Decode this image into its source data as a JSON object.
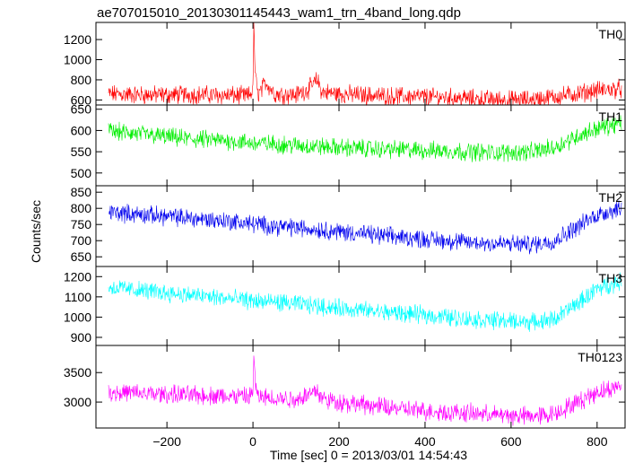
{
  "chart_data": {
    "type": "line",
    "title": "ae707015010_20130301145443_wam1_trn_4band_long.qdp",
    "xlabel": "Time [sec] 0 = 2013/03/01 14:54:43",
    "ylabel": "Counts/sec",
    "xlim": [
      -365,
      865
    ],
    "x_ticks": [
      -200,
      0,
      200,
      400,
      600,
      800
    ],
    "x_tick_labels": [
      "−200",
      "0",
      "200",
      "400",
      "600",
      "800"
    ],
    "panels": [
      {
        "name": "TH0",
        "color": "#ff0000",
        "ylim": [
          550,
          1370
        ],
        "y_ticks": [
          600,
          800,
          1000,
          1200
        ],
        "x": [
          -350,
          -300,
          -250,
          -200,
          -150,
          -100,
          -50,
          -10,
          0,
          2,
          5,
          10,
          20,
          30,
          50,
          100,
          130,
          150,
          160,
          200,
          250,
          300,
          350,
          400,
          450,
          500,
          550,
          600,
          650,
          700,
          750,
          800,
          850
        ],
        "y": [
          660,
          655,
          650,
          648,
          655,
          650,
          645,
          640,
          700,
          1330,
          900,
          660,
          700,
          780,
          660,
          650,
          710,
          800,
          680,
          660,
          650,
          640,
          635,
          630,
          625,
          615,
          605,
          600,
          605,
          630,
          660,
          695,
          710
        ]
      },
      {
        "name": "TH1",
        "color": "#00ee00",
        "ylim": [
          470,
          660
        ],
        "y_ticks": [
          500,
          550,
          600,
          650
        ],
        "x": [
          -350,
          -300,
          -250,
          -200,
          -150,
          -100,
          -50,
          0,
          50,
          100,
          150,
          200,
          250,
          300,
          350,
          400,
          450,
          500,
          550,
          600,
          650,
          700,
          750,
          800,
          850
        ],
        "y": [
          600,
          595,
          590,
          585,
          580,
          578,
          575,
          570,
          568,
          565,
          562,
          560,
          558,
          556,
          555,
          553,
          552,
          550,
          548,
          548,
          550,
          560,
          585,
          605,
          615
        ]
      },
      {
        "name": "TH2",
        "color": "#0000ee",
        "ylim": [
          620,
          870
        ],
        "y_ticks": [
          650,
          700,
          750,
          800,
          850
        ],
        "x": [
          -350,
          -300,
          -250,
          -200,
          -150,
          -100,
          -50,
          0,
          50,
          100,
          150,
          200,
          250,
          300,
          350,
          400,
          450,
          500,
          550,
          600,
          650,
          700,
          750,
          800,
          850
        ],
        "y": [
          790,
          785,
          780,
          775,
          770,
          765,
          760,
          752,
          745,
          740,
          735,
          728,
          722,
          715,
          710,
          705,
          700,
          695,
          692,
          690,
          688,
          700,
          740,
          780,
          800
        ]
      },
      {
        "name": "TH3",
        "color": "#00ffff",
        "ylim": [
          860,
          1250
        ],
        "y_ticks": [
          900,
          1000,
          1100,
          1200
        ],
        "x": [
          -350,
          -300,
          -250,
          -200,
          -150,
          -100,
          -50,
          0,
          50,
          100,
          150,
          200,
          250,
          300,
          350,
          400,
          450,
          500,
          550,
          600,
          650,
          700,
          750,
          800,
          850
        ],
        "y": [
          1150,
          1140,
          1130,
          1120,
          1110,
          1100,
          1090,
          1080,
          1075,
          1065,
          1055,
          1045,
          1035,
          1025,
          1018,
          1010,
          1000,
          990,
          985,
          980,
          975,
          990,
          1060,
          1140,
          1175
        ]
      },
      {
        "name": "TH0123",
        "color": "#ff00ff",
        "ylim": [
          2560,
          3960
        ],
        "y_ticks": [
          3000,
          3500
        ],
        "x": [
          -350,
          -300,
          -250,
          -200,
          -150,
          -100,
          -50,
          -10,
          0,
          2,
          5,
          10,
          20,
          50,
          100,
          150,
          160,
          200,
          250,
          300,
          350,
          400,
          450,
          500,
          550,
          600,
          650,
          700,
          750,
          800,
          850
        ],
        "y": [
          3180,
          3160,
          3140,
          3130,
          3120,
          3110,
          3100,
          3090,
          3150,
          3820,
          3350,
          3100,
          3080,
          3070,
          3050,
          3200,
          3060,
          3000,
          2960,
          2920,
          2880,
          2850,
          2830,
          2810,
          2790,
          2770,
          2760,
          2800,
          2980,
          3170,
          3260
        ]
      }
    ]
  }
}
